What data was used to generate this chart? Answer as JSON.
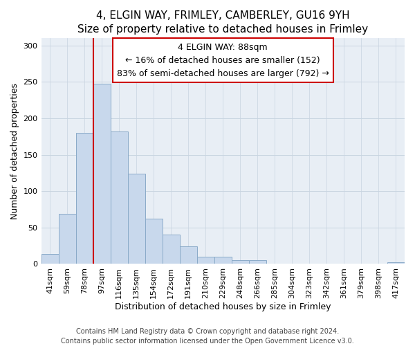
{
  "title": "4, ELGIN WAY, FRIMLEY, CAMBERLEY, GU16 9YH",
  "subtitle": "Size of property relative to detached houses in Frimley",
  "xlabel": "Distribution of detached houses by size in Frimley",
  "ylabel": "Number of detached properties",
  "bar_labels": [
    "41sqm",
    "59sqm",
    "78sqm",
    "97sqm",
    "116sqm",
    "135sqm",
    "154sqm",
    "172sqm",
    "191sqm",
    "210sqm",
    "229sqm",
    "248sqm",
    "266sqm",
    "285sqm",
    "304sqm",
    "323sqm",
    "342sqm",
    "361sqm",
    "379sqm",
    "398sqm",
    "417sqm"
  ],
  "bar_values": [
    14,
    69,
    180,
    247,
    182,
    124,
    62,
    40,
    24,
    10,
    10,
    5,
    5,
    0,
    0,
    0,
    0,
    0,
    0,
    0,
    2
  ],
  "bar_color": "#c8d8ec",
  "bar_edge_color": "#8aaac8",
  "property_line_color": "#cc0000",
  "annotation_title": "4 ELGIN WAY: 88sqm",
  "annotation_line1": "← 16% of detached houses are smaller (152)",
  "annotation_line2": "83% of semi-detached houses are larger (792) →",
  "annotation_box_facecolor": "#ffffff",
  "annotation_box_edgecolor": "#cc0000",
  "plot_bg_color": "#e8eef5",
  "fig_bg_color": "#ffffff",
  "ylim": [
    0,
    310
  ],
  "yticks": [
    0,
    50,
    100,
    150,
    200,
    250,
    300
  ],
  "footer_line1": "Contains HM Land Registry data © Crown copyright and database right 2024.",
  "footer_line2": "Contains public sector information licensed under the Open Government Licence v3.0.",
  "title_fontsize": 11,
  "subtitle_fontsize": 10,
  "xlabel_fontsize": 9,
  "ylabel_fontsize": 9,
  "tick_fontsize": 8,
  "footer_fontsize": 7,
  "annotation_fontsize": 9,
  "grid_color": "#c8d4e0"
}
